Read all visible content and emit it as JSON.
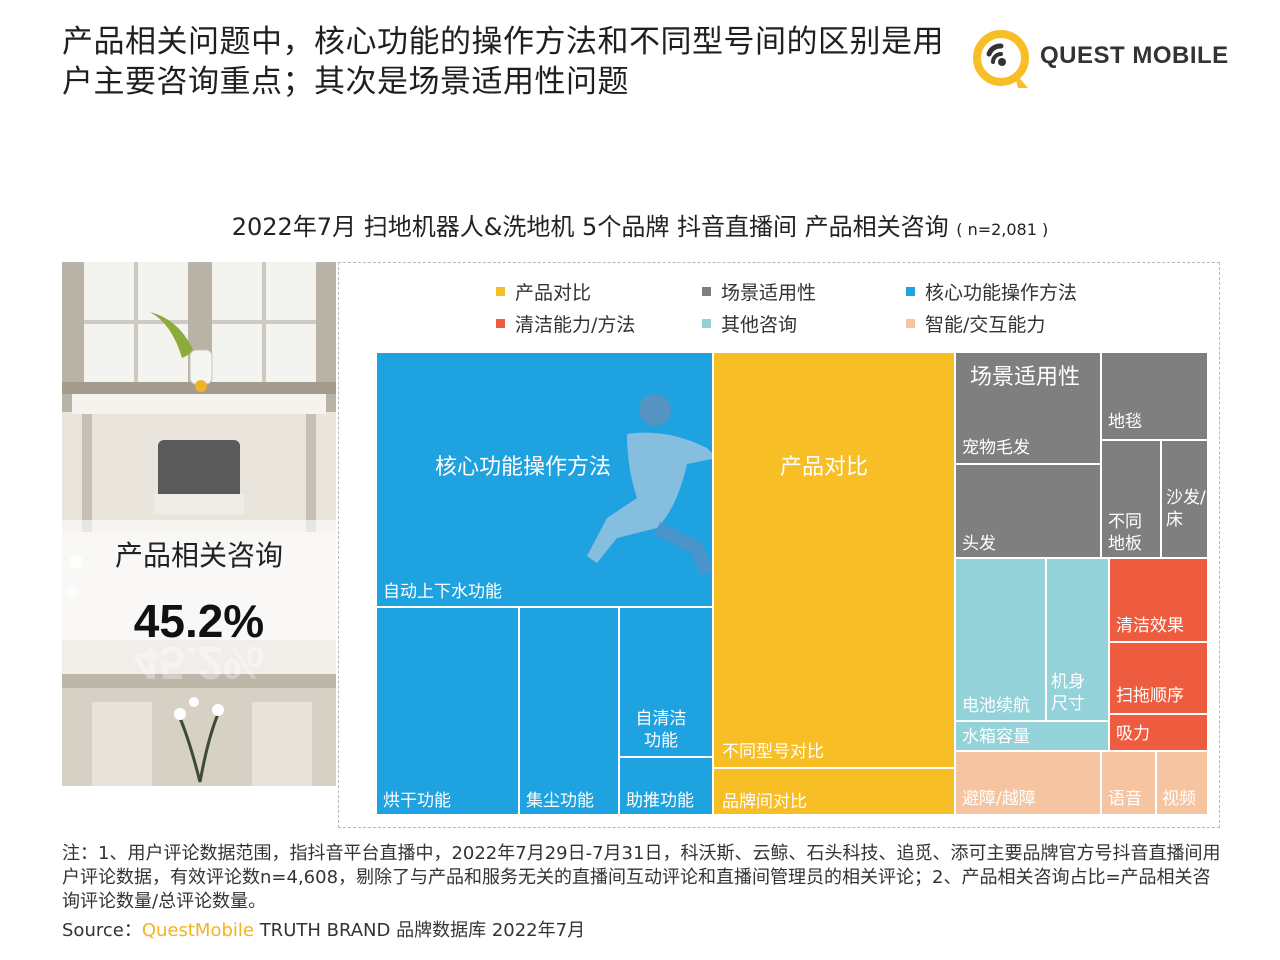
{
  "headline": {
    "line1": "产品相关问题中，核心功能的操作方法和不同型号间的区别是用",
    "line2": "户主要咨询重点；其次是场景适用性问题"
  },
  "logo": {
    "text": "QUEST MOBILE",
    "icon": "quest-mobile-logo"
  },
  "chart_title": "2022年7月 扫地机器人&洗地机 5个品牌 抖音直播间 产品相关咨询",
  "chart_n": "( n=2,081 )",
  "highlight": {
    "label": "产品相关咨询",
    "value": "45.2%"
  },
  "legend": [
    {
      "label": "产品对比",
      "color": "#F7BE25"
    },
    {
      "label": "场景适用性",
      "color": "#7F7F7F"
    },
    {
      "label": "核心功能操作方法",
      "color": "#1EA2E0"
    },
    {
      "label": "清洁能力/方法",
      "color": "#EE5C3F"
    },
    {
      "label": "其他咨询",
      "color": "#93D2D8"
    },
    {
      "label": "智能/交互能力",
      "color": "#F6C4A1"
    }
  ],
  "chart_data": {
    "type": "treemap",
    "title": "2022年7月 扫地机器人&洗地机 5个品牌 抖音直播间 产品相关咨询",
    "n": "n=2,081",
    "groups": [
      {
        "name": "核心功能操作方法",
        "color": "#1EA2E0",
        "items": [
          "自动上下水功能",
          "烘干功能",
          "集尘功能",
          "自清洁功能",
          "助推功能"
        ]
      },
      {
        "name": "产品对比",
        "color": "#F7BE25",
        "items": [
          "不同型号对比",
          "品牌间对比"
        ]
      },
      {
        "name": "场景适用性",
        "color": "#7F7F7F",
        "items": [
          "宠物毛发",
          "地毯",
          "头发",
          "不同地板",
          "沙发/床"
        ]
      },
      {
        "name": "其他咨询",
        "color": "#93D2D8",
        "items": [
          "电池续航",
          "机身尺寸",
          "水箱容量"
        ]
      },
      {
        "name": "清洁能力/方法",
        "color": "#EE5C3F",
        "items": [
          "清洁效果",
          "扫拖顺序",
          "吸力"
        ]
      },
      {
        "name": "智能/交互能力",
        "color": "#F6C4A1",
        "items": [
          "避障/越障",
          "语音",
          "视频"
        ]
      }
    ]
  },
  "treemap": {
    "core_group_label": "核心功能操作方法",
    "compare_group_label": "产品对比",
    "scene_group_label": "场景适用性",
    "auto_water": "自动上下水功能",
    "dry": "烘干功能",
    "dust": "集尘功能",
    "self_clean": "自清洁\n功能",
    "assist": "助推功能",
    "model_compare": "不同型号对比",
    "brand_compare": "品牌间对比",
    "pet_hair": "宠物毛发",
    "carpet": "地毯",
    "hair": "头发",
    "floor": "不同\n地板",
    "sofa_bed": "沙发/\n床",
    "battery": "电池续航",
    "body_size": "机身\n尺寸",
    "water_tank": "水箱容量",
    "clean_effect": "清洁效果",
    "sweep_mop_order": "扫拖顺序",
    "suction": "吸力",
    "obstacle": "避障/越障",
    "voice": "语音",
    "video": "视频"
  },
  "footnote": "注：1、用户评论数据范围，指抖音平台直播中，2022年7月29日-7月31日，科沃斯、云鲸、石头科技、追觅、添可主要品牌官方号抖音直播间用户评论数据，有效评论数n=4,608，剔除了与产品和服务无关的直播间互动评论和直播间管理员的相关评论；2、产品相关咨询占比=产品相关咨询评论数量/总评论数量。",
  "source": {
    "prefix": "Source：",
    "brand": "QuestMobile",
    "suffix": " TRUTH BRAND 品牌数据库 2022年7月"
  }
}
